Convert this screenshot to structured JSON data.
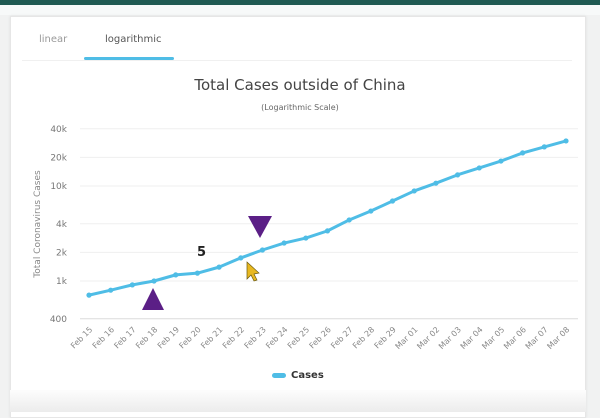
{
  "tabs": [
    {
      "label": "linear",
      "active": false
    },
    {
      "label": "logarithmic",
      "active": true
    }
  ],
  "chart": {
    "title": "Total Cases outside of China",
    "subtitle": "(Logarithmic Scale)",
    "ylabel": "Total Coronavirus Cases",
    "legend_label": "Cases",
    "annotation_number": "5",
    "line_color": "#4fbde6",
    "marker_color": "#5b1f86",
    "cursor_color": "#e8b820"
  },
  "chart_data": {
    "type": "line",
    "title": "Total Cases outside of China",
    "subtitle": "(Logarithmic Scale)",
    "xlabel": "",
    "ylabel": "Total Coronavirus Cases",
    "yscale": "log",
    "ylim": [
      400,
      40000
    ],
    "y_ticks": [
      "400",
      "1k",
      "2k",
      "4k",
      "10k",
      "20k",
      "40k"
    ],
    "grid": true,
    "legend_position": "bottom",
    "categories": [
      "Feb 15",
      "Feb 16",
      "Feb 17",
      "Feb 18",
      "Feb 19",
      "Feb 20",
      "Feb 21",
      "Feb 22",
      "Feb 23",
      "Feb 24",
      "Feb 25",
      "Feb 26",
      "Feb 27",
      "Feb 28",
      "Feb 29",
      "Mar 01",
      "Mar 02",
      "Mar 03",
      "Mar 04",
      "Mar 05",
      "Mar 06",
      "Mar 07",
      "Mar 08"
    ],
    "series": [
      {
        "name": "Cases",
        "values": [
          710,
          800,
          910,
          1000,
          1160,
          1210,
          1400,
          1750,
          2120,
          2510,
          2830,
          3370,
          4390,
          5450,
          6950,
          8870,
          10700,
          13100,
          15500,
          18300,
          22300,
          25800,
          29800
        ]
      }
    ],
    "annotations": [
      {
        "type": "triangle-up",
        "near": "Feb 18"
      },
      {
        "type": "triangle-down",
        "near": "Feb 23"
      },
      {
        "type": "text",
        "text": "5",
        "near": "Feb 20"
      }
    ]
  }
}
